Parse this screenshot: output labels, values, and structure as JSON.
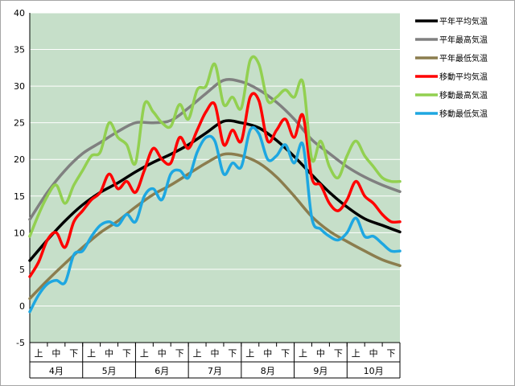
{
  "chart_data": {
    "type": "line",
    "title": "",
    "xlabel": "",
    "ylabel": "",
    "ylim": [
      -5,
      40
    ],
    "yticks": [
      40,
      35,
      30,
      25,
      20,
      15,
      10,
      5,
      0,
      -5
    ],
    "grid": "horizontal",
    "legend_position": "right",
    "plot_background": "#c6dfc9",
    "x_range": [
      0,
      21
    ],
    "x_sublabels": [
      "上",
      "中",
      "下",
      "上",
      "中",
      "下",
      "上",
      "中",
      "下",
      "上",
      "中",
      "下",
      "上",
      "中",
      "下",
      "上",
      "中",
      "下",
      "上",
      "中",
      "下"
    ],
    "months": [
      "4月",
      "5月",
      "6月",
      "7月",
      "8月",
      "9月",
      "10月"
    ],
    "series": [
      {
        "name": "平年平均気温",
        "color": "#000000",
        "x": [
          0,
          1,
          2,
          3,
          4,
          5,
          6,
          7,
          8,
          9,
          10,
          11,
          12,
          13,
          14,
          15,
          16,
          17,
          18,
          19,
          20,
          21
        ],
        "values": [
          6.2,
          9.0,
          11.6,
          13.8,
          15.5,
          16.8,
          18.3,
          19.6,
          20.7,
          22.0,
          23.6,
          25.2,
          25.0,
          24.3,
          22.6,
          20.4,
          17.9,
          15.5,
          13.5,
          11.9,
          11.0,
          10.1
        ]
      },
      {
        "name": "平年最高気温",
        "color": "#808080",
        "x": [
          0,
          1,
          2,
          3,
          4,
          5,
          6,
          7,
          8,
          9,
          10,
          11,
          12,
          13,
          14,
          15,
          16,
          17,
          18,
          19,
          20,
          21
        ],
        "values": [
          11.8,
          15.5,
          18.5,
          20.8,
          22.3,
          23.8,
          25.0,
          25.0,
          25.3,
          27.0,
          29.0,
          30.8,
          30.6,
          29.5,
          27.8,
          25.5,
          22.7,
          20.8,
          19.0,
          17.6,
          16.5,
          15.6
        ]
      },
      {
        "name": "平年最低気温",
        "color": "#8b7d4e",
        "x": [
          0,
          1,
          2,
          3,
          4,
          5,
          6,
          7,
          8,
          9,
          10,
          11,
          12,
          13,
          14,
          15,
          16,
          17,
          18,
          19,
          20,
          21
        ],
        "values": [
          1.0,
          3.5,
          5.8,
          8.0,
          10.0,
          11.6,
          13.5,
          15.2,
          16.5,
          18.0,
          19.5,
          20.7,
          20.5,
          19.5,
          17.6,
          15.0,
          12.2,
          10.2,
          8.8,
          7.5,
          6.3,
          5.5
        ]
      },
      {
        "name": "移動平均気温",
        "color": "#ff0000",
        "x": [
          0,
          0.5,
          1,
          1.5,
          2,
          2.5,
          3,
          3.5,
          4,
          4.5,
          5,
          5.5,
          6,
          6.5,
          7,
          7.5,
          8,
          8.5,
          9,
          9.5,
          10,
          10.5,
          11,
          11.5,
          12,
          12.5,
          13,
          13.5,
          14,
          14.5,
          15,
          15.5,
          16,
          16.5,
          17,
          17.5,
          18,
          18.5,
          19,
          19.5,
          20,
          20.5,
          21
        ],
        "values": [
          4.0,
          6.0,
          9.0,
          10.0,
          8.0,
          11.5,
          13.0,
          14.5,
          15.5,
          18.0,
          16.0,
          17.0,
          15.5,
          18.5,
          21.5,
          20.0,
          19.5,
          23.0,
          21.5,
          24.0,
          26.5,
          27.5,
          22.0,
          24.0,
          22.5,
          28.5,
          28.0,
          22.5,
          24.0,
          25.5,
          23.0,
          26.0,
          17.5,
          16.5,
          14.0,
          13.0,
          14.5,
          17.0,
          15.0,
          14.0,
          12.5,
          11.5,
          11.5
        ]
      },
      {
        "name": "移動最高気温",
        "color": "#92d050",
        "x": [
          0,
          0.5,
          1,
          1.5,
          2,
          2.5,
          3,
          3.5,
          4,
          4.5,
          5,
          5.5,
          6,
          6.5,
          7,
          7.5,
          8,
          8.5,
          9,
          9.5,
          10,
          10.5,
          11,
          11.5,
          12,
          12.5,
          13,
          13.5,
          14,
          14.5,
          15,
          15.5,
          16,
          16.5,
          17,
          17.5,
          18,
          18.5,
          19,
          19.5,
          20,
          20.5,
          21
        ],
        "values": [
          9.5,
          12.5,
          15.0,
          16.5,
          14.0,
          16.5,
          18.5,
          20.5,
          21.0,
          25.0,
          23.0,
          22.0,
          19.5,
          27.5,
          26.5,
          25.0,
          24.5,
          27.5,
          25.5,
          29.5,
          30.0,
          33.0,
          27.5,
          28.5,
          27.0,
          33.5,
          33.0,
          28.0,
          28.5,
          29.5,
          28.5,
          30.5,
          20.0,
          22.5,
          19.0,
          17.5,
          20.5,
          22.5,
          20.5,
          19.0,
          17.5,
          17.0,
          17.0
        ]
      },
      {
        "name": "移動最低気温",
        "color": "#1ea7e1",
        "x": [
          0,
          0.5,
          1,
          1.5,
          2,
          2.5,
          3,
          3.5,
          4,
          4.5,
          5,
          5.5,
          6,
          6.5,
          7,
          7.5,
          8,
          8.5,
          9,
          9.5,
          10,
          10.5,
          11,
          11.5,
          12,
          12.5,
          13,
          13.5,
          14,
          14.5,
          15,
          15.5,
          16,
          16.5,
          17,
          17.5,
          18,
          18.5,
          19,
          19.5,
          20,
          20.5,
          21
        ],
        "values": [
          -0.8,
          1.5,
          3.0,
          3.5,
          3.2,
          7.0,
          7.5,
          9.5,
          11.0,
          11.5,
          11.0,
          12.5,
          11.5,
          15.0,
          16.0,
          14.5,
          18.0,
          18.5,
          17.5,
          21.0,
          23.0,
          22.5,
          18.0,
          19.5,
          19.0,
          24.0,
          23.5,
          20.0,
          20.5,
          22.0,
          19.5,
          22.0,
          12.0,
          10.5,
          9.5,
          9.0,
          10.0,
          12.0,
          9.5,
          9.5,
          8.5,
          7.5,
          7.5
        ]
      }
    ]
  }
}
